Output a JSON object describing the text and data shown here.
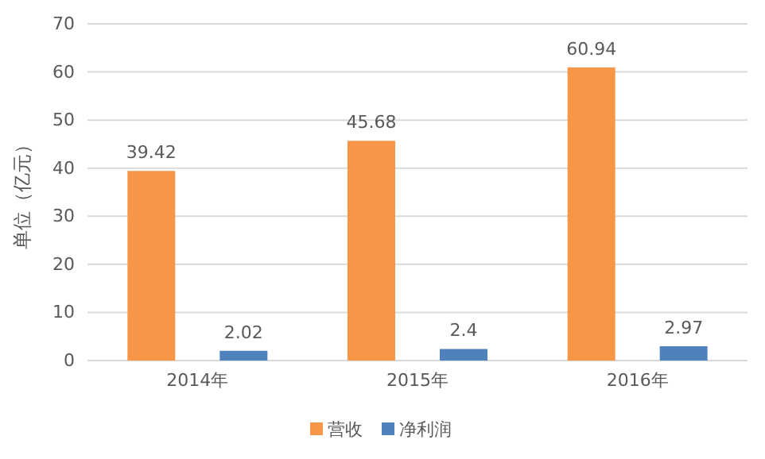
{
  "chart_data": {
    "type": "bar",
    "ylabel": "单位（亿元）",
    "categories": [
      "2014年",
      "2015年",
      "2016年"
    ],
    "series": [
      {
        "name": "营收",
        "color": "#f79646",
        "values": [
          39.42,
          45.68,
          60.94
        ]
      },
      {
        "name": "净利润",
        "color": "#4f81bd",
        "values": [
          2.02,
          2.4,
          2.97
        ]
      }
    ],
    "ylim": [
      0,
      70
    ],
    "yticks": [
      0,
      10,
      20,
      30,
      40,
      50,
      60,
      70
    ],
    "grid": "y",
    "legend": "bottom",
    "data_labels": true
  }
}
